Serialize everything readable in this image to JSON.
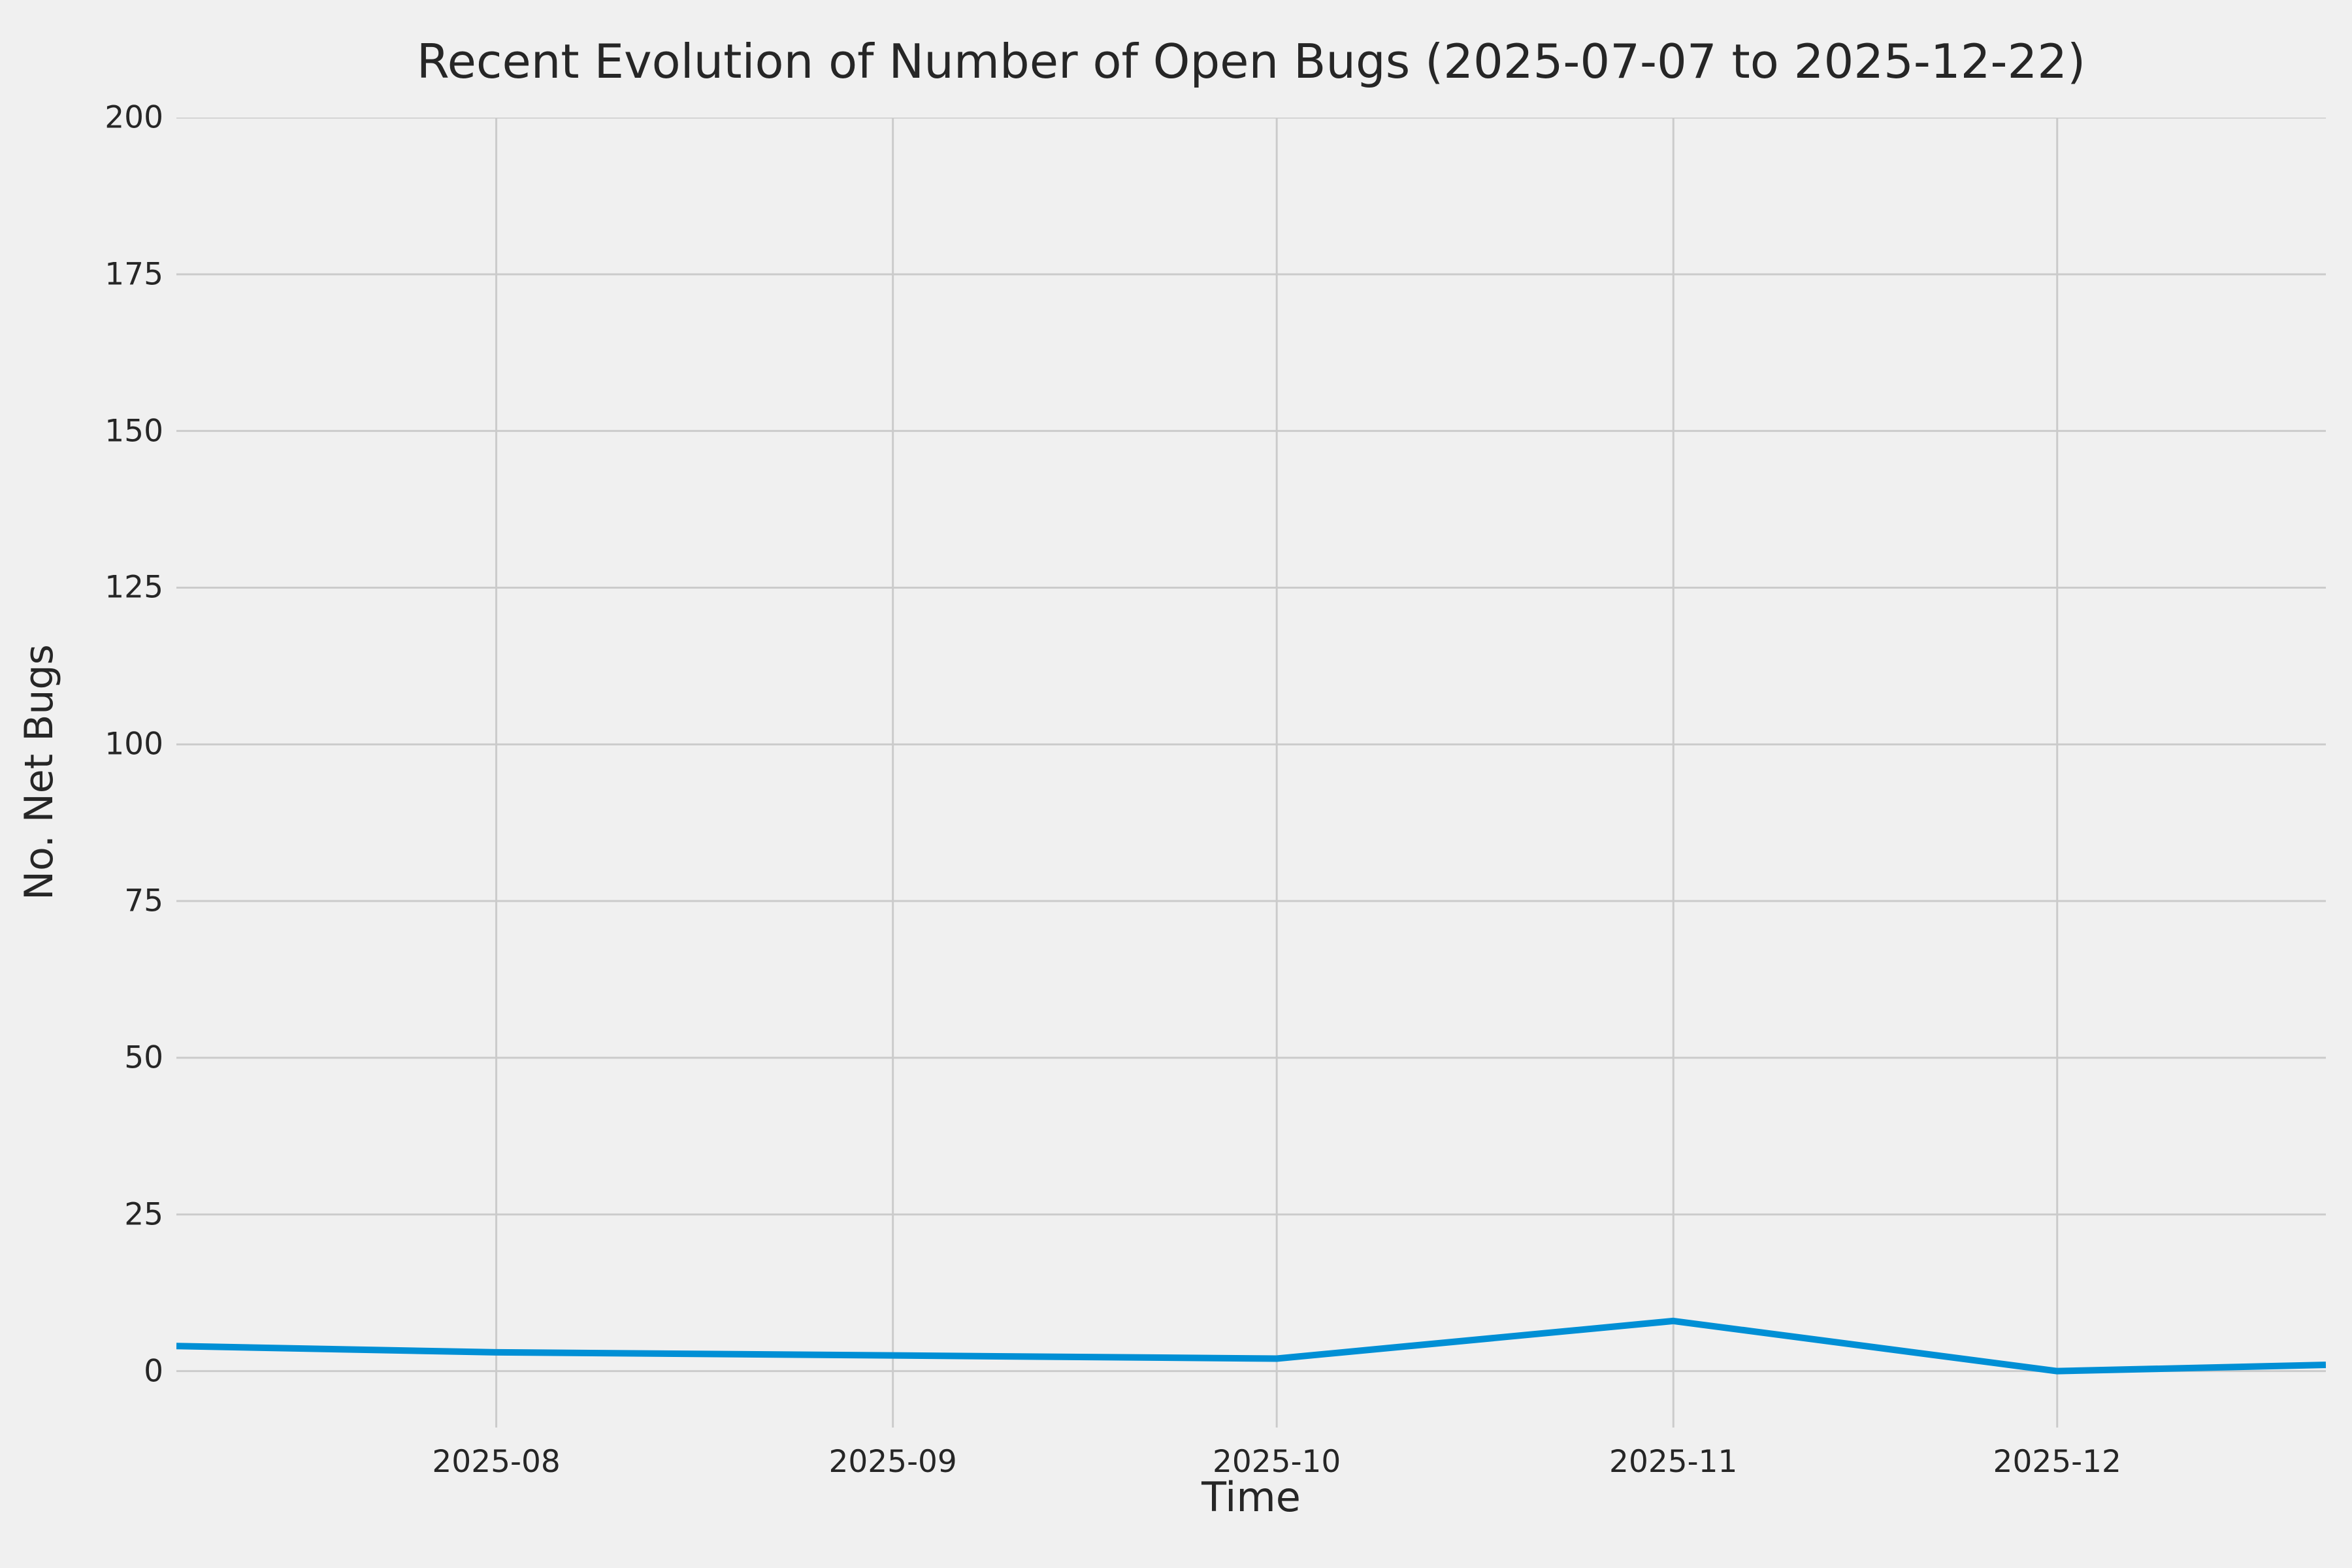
{
  "chart_data": {
    "type": "line",
    "title": "Recent Evolution of Number of Open Bugs (2025-07-07 to 2025-12-22)",
    "xlabel": "Time",
    "ylabel": "No. Net Bugs",
    "x_dates": [
      "2025-07-07",
      "2025-08-01",
      "2025-09-01",
      "2025-10-01",
      "2025-11-01",
      "2025-12-01",
      "2025-12-22"
    ],
    "x_days": [
      0,
      25,
      56,
      86,
      117,
      147,
      168
    ],
    "values": [
      4,
      3,
      2.5,
      2,
      8,
      0,
      1
    ],
    "x_ticks": [
      {
        "label": "2025-08",
        "day": 25
      },
      {
        "label": "2025-09",
        "day": 56
      },
      {
        "label": "2025-10",
        "day": 86
      },
      {
        "label": "2025-11",
        "day": 117
      },
      {
        "label": "2025-12",
        "day": 147
      }
    ],
    "y_ticks": [
      0,
      25,
      50,
      75,
      100,
      125,
      150,
      175,
      200
    ],
    "xlim_days": [
      0,
      168
    ],
    "ylim": [
      -9,
      200
    ],
    "grid": true,
    "legend": "none",
    "line_color": "#008fd5",
    "line_width": 10,
    "grid_color": "#cbcbcb",
    "background_color": "#f0f0f0",
    "text_color": "#262626"
  }
}
